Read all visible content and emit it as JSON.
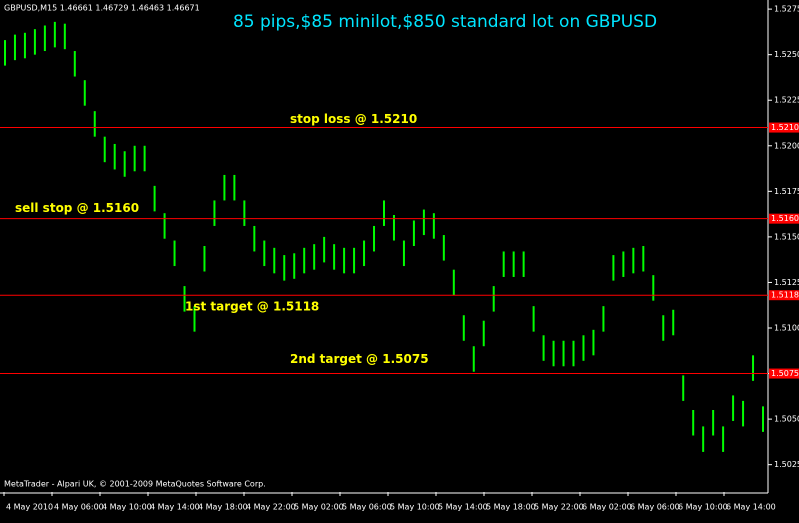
{
  "chart_data": {
    "type": "range",
    "symbol_header": "GBPUSD,M15  1.46661 1.46729 1.46463 1.46671",
    "title": "85 pips,$85 minilot,$850 standard lot on GBPUSD",
    "footer": "MetaTrader - Alpari UK, © 2001-2009 MetaQuotes Software Corp.",
    "color": "#00ff00",
    "high": [
      1.5258,
      1.5261,
      1.5262,
      1.5264,
      1.5266,
      1.5268,
      1.5267,
      1.5252,
      1.5236,
      1.5219,
      1.5205,
      1.5201,
      1.5197,
      1.52,
      1.52,
      1.5178,
      1.5163,
      1.5148,
      1.5123,
      1.5112,
      1.5145,
      1.517,
      1.5184,
      1.5184,
      1.517,
      1.5156,
      1.5148,
      1.5144,
      1.514,
      1.5141,
      1.5144,
      1.5146,
      1.515,
      1.5146,
      1.5144,
      1.5144,
      1.5148,
      1.5156,
      1.517,
      1.5162,
      1.5148,
      1.5159,
      1.5165,
      1.5163,
      1.5151,
      1.5132,
      1.5107,
      1.509,
      1.5104,
      1.5123,
      1.5142,
      1.5142,
      1.5142,
      1.5112,
      1.5096,
      1.5093,
      1.5093,
      1.5093,
      1.5096,
      1.5099,
      1.5112,
      1.514,
      1.5142,
      1.5144,
      1.5145,
      1.5129,
      1.5107,
      1.511,
      1.5074,
      1.5055,
      1.5046,
      1.5055,
      1.5046,
      1.5063,
      1.506,
      1.5085,
      1.5057
    ],
    "low": [
      1.5244,
      1.5247,
      1.5248,
      1.525,
      1.5252,
      1.5254,
      1.5253,
      1.5238,
      1.5222,
      1.5205,
      1.5191,
      1.5187,
      1.5183,
      1.5186,
      1.5186,
      1.5164,
      1.5149,
      1.5134,
      1.5109,
      1.5098,
      1.5131,
      1.5156,
      1.517,
      1.517,
      1.5156,
      1.5142,
      1.5134,
      1.513,
      1.5126,
      1.5127,
      1.513,
      1.5132,
      1.5136,
      1.5132,
      1.513,
      1.513,
      1.5134,
      1.5142,
      1.5156,
      1.5148,
      1.5134,
      1.5145,
      1.5151,
      1.5149,
      1.5137,
      1.5118,
      1.5093,
      1.5076,
      1.509,
      1.5109,
      1.5128,
      1.5128,
      1.5128,
      1.5098,
      1.5082,
      1.5079,
      1.5079,
      1.5079,
      1.5082,
      1.5085,
      1.5098,
      1.5126,
      1.5128,
      1.513,
      1.5131,
      1.5115,
      1.5093,
      1.5096,
      1.506,
      1.5041,
      1.5032,
      1.5041,
      1.5032,
      1.5049,
      1.5046,
      1.5071,
      1.5043
    ],
    "time_labels": [
      "4 May 2010",
      "4 May 06:00",
      "4 May 10:00",
      "4 May 14:00",
      "4 May 18:00",
      "4 May 22:00",
      "5 May 02:00",
      "5 May 06:00",
      "5 May 10:00",
      "5 May 14:00",
      "5 May 18:00",
      "5 May 22:00",
      "6 May 02:00",
      "6 May 06:00",
      "6 May 10:00",
      "6 May 14:00"
    ],
    "ylim": [
      1.501,
      1.528
    ],
    "yticks": [
      {
        "value": 1.5025,
        "label": "1.50250"
      },
      {
        "value": 1.505,
        "label": "1.50500"
      },
      {
        "value": 1.5075,
        "label": "1.50750"
      },
      {
        "value": 1.51,
        "label": "1.51000"
      },
      {
        "value": 1.5125,
        "label": "1.51250"
      },
      {
        "value": 1.515,
        "label": "1.51500"
      },
      {
        "value": 1.5175,
        "label": "1.51750"
      },
      {
        "value": 1.52,
        "label": "1.52000"
      },
      {
        "value": 1.5225,
        "label": "1.52250"
      },
      {
        "value": 1.525,
        "label": "1.52500"
      },
      {
        "value": 1.5275,
        "label": "1.52750"
      }
    ],
    "levels": [
      {
        "value": 1.521,
        "label": "1.52100",
        "text": "stop loss @ 1.5210",
        "color": "#ff0000"
      },
      {
        "value": 1.516,
        "label": "1.51600",
        "text": "sell stop @ 1.5160",
        "color": "#ff0000"
      },
      {
        "value": 1.5118,
        "label": "1.51180",
        "text": "1st target @ 1.5118",
        "color": "#ff0000"
      },
      {
        "value": 1.5075,
        "label": "1.50750",
        "text": "2nd target @ 1.5075",
        "color": "#ff0000"
      }
    ]
  }
}
